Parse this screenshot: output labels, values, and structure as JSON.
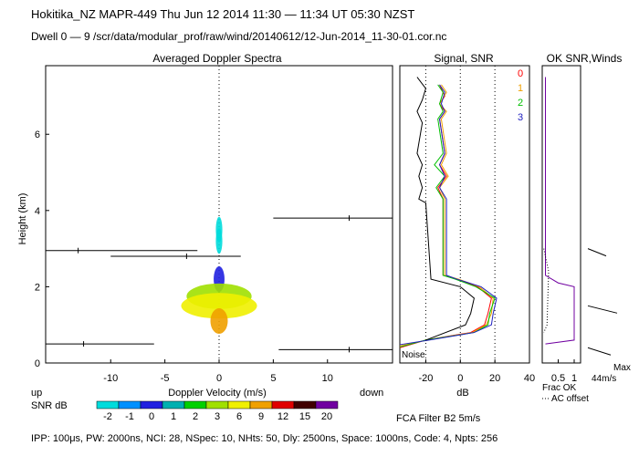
{
  "header": {
    "line1": "Hokitika_NZ   MAPR-449   Thu Jun 12 2014 11:30 — 11:34 UT 05:30 NZST",
    "line2": "Dwell   0 — 9    /scr/data/modular_prof/raw/wind/20140612/12-Jun-2014_11-30-01.cor.nc"
  },
  "footer": {
    "params": "IPP: 100μs,  PW: 2000ns,  NCI:  28,  NSpec: 10, NHts: 50,  Dly: 2500ns,  Space: 1000ns,  Code: 4,   Npts: 256",
    "fca": "FCA Filter B2   5m/s"
  },
  "colorbar": {
    "up": "up",
    "down": "down",
    "label": "SNR dB",
    "levels": [
      "-2",
      "-1",
      "0",
      "1",
      "2",
      "3",
      "6",
      "9",
      "12",
      "15",
      "20"
    ],
    "colors": [
      "#00dcdc",
      "#0090ff",
      "#2020e0",
      "#00b0b0",
      "#00d000",
      "#a0e000",
      "#f0f000",
      "#f0a000",
      "#e00000",
      "#400000",
      "#7000a0"
    ]
  },
  "chart_data": [
    {
      "type": "heatmap",
      "title": "Averaged Doppler Spectra",
      "xlabel": "Doppler Velocity (m/s)",
      "ylabel": "Height (km)",
      "xlim": [
        -16,
        16
      ],
      "ylim": [
        0,
        7.8
      ],
      "xticks": [
        "-10",
        "-5",
        "0",
        "5",
        "10"
      ],
      "xtick_values": [
        -10,
        -5,
        0,
        5,
        10
      ],
      "yticks": [
        "0",
        "2",
        "4",
        "6"
      ],
      "ytick_values": [
        0,
        2,
        4,
        6
      ],
      "echo_layers": [
        {
          "height": 3.5,
          "vmin": -0.3,
          "vmax": 0.3,
          "snr": -2
        },
        {
          "height": 3.2,
          "vmin": -0.3,
          "vmax": 0.3,
          "snr": -2
        },
        {
          "height": 2.2,
          "vmin": -0.5,
          "vmax": 0.5,
          "snr": 0
        },
        {
          "height": 1.75,
          "vmin": -3.0,
          "vmax": 3.0,
          "snr": 3
        },
        {
          "height": 1.5,
          "vmin": -3.5,
          "vmax": 3.5,
          "snr": 6
        },
        {
          "height": 1.1,
          "vmin": -0.8,
          "vmax": 0.8,
          "snr": 9
        }
      ],
      "moment_bars": [
        {
          "height": 2.95,
          "vmin": -16,
          "vmax": -2,
          "center": -13
        },
        {
          "height": 2.8,
          "vmin": -10,
          "vmax": 2,
          "center": -3
        },
        {
          "height": 0.5,
          "vmin": -16,
          "vmax": -6,
          "center": -12.5
        },
        {
          "height": 3.8,
          "vmin": 5,
          "vmax": 16,
          "center": 12
        },
        {
          "height": 0.35,
          "vmin": 5.5,
          "vmax": 16,
          "center": 12
        }
      ]
    },
    {
      "type": "line",
      "title": "Signal, SNR",
      "xlabel": "dB",
      "xlim": [
        -35,
        40
      ],
      "ylim": [
        0,
        7.8
      ],
      "xticks": [
        "-20",
        "0",
        "20",
        "40"
      ],
      "xtick_values": [
        -20,
        0,
        20,
        40
      ],
      "noise_label": "Noise",
      "series": [
        {
          "name": "0",
          "color": "#ff0000",
          "points": [
            [
              -12,
              7.3
            ],
            [
              -9,
              7.0
            ],
            [
              -12,
              6.8
            ],
            [
              -9,
              6.6
            ],
            [
              -12,
              6.4
            ],
            [
              -9,
              5.5
            ],
            [
              -12,
              5.2
            ],
            [
              -8,
              4.9
            ],
            [
              -13,
              4.6
            ],
            [
              -10,
              4.3
            ],
            [
              -10,
              2.3
            ],
            [
              -2,
              2.2
            ],
            [
              10,
              2.0
            ],
            [
              18,
              1.7
            ],
            [
              16,
              1.3
            ],
            [
              14,
              1.0
            ],
            [
              6,
              0.8
            ],
            [
              -20,
              0.6
            ],
            [
              -35,
              0.4
            ]
          ]
        },
        {
          "name": "1",
          "color": "#f0a000",
          "points": [
            [
              -11,
              7.3
            ],
            [
              -8,
              7.1
            ],
            [
              -12,
              6.8
            ],
            [
              -8,
              6.6
            ],
            [
              -11,
              6.4
            ],
            [
              -8,
              5.5
            ],
            [
              -11,
              5.2
            ],
            [
              -7,
              4.9
            ],
            [
              -12,
              4.6
            ],
            [
              -9,
              4.3
            ],
            [
              -9,
              2.3
            ],
            [
              -1,
              2.2
            ],
            [
              11,
              2.0
            ],
            [
              19,
              1.7
            ],
            [
              18,
              1.3
            ],
            [
              15,
              1.0
            ],
            [
              7,
              0.8
            ],
            [
              -19,
              0.6
            ],
            [
              -35,
              0.45
            ]
          ]
        },
        {
          "name": "2",
          "color": "#00c000",
          "points": [
            [
              -13,
              7.3
            ],
            [
              -10,
              7.1
            ],
            [
              -12,
              6.8
            ],
            [
              -10,
              6.6
            ],
            [
              -13,
              6.4
            ],
            [
              -10,
              5.5
            ],
            [
              -15,
              5.2
            ],
            [
              -9,
              4.9
            ],
            [
              -14,
              4.6
            ],
            [
              -10,
              4.3
            ],
            [
              -10,
              2.3
            ],
            [
              -3,
              2.2
            ],
            [
              9,
              2.0
            ],
            [
              20,
              1.7
            ],
            [
              17,
              1.3
            ],
            [
              16,
              1.0
            ],
            [
              8,
              0.8
            ],
            [
              -20,
              0.6
            ],
            [
              -35,
              0.42
            ]
          ]
        },
        {
          "name": "3",
          "color": "#2020c0",
          "points": [
            [
              -12,
              7.3
            ],
            [
              -9,
              7.1
            ],
            [
              -11,
              6.8
            ],
            [
              -9,
              6.6
            ],
            [
              -12,
              6.4
            ],
            [
              -9,
              5.5
            ],
            [
              -12,
              5.2
            ],
            [
              -9,
              4.9
            ],
            [
              -12,
              4.6
            ],
            [
              -8,
              4.3
            ],
            [
              -8,
              2.3
            ],
            [
              -2,
              2.2
            ],
            [
              12,
              2.0
            ],
            [
              21,
              1.7
            ],
            [
              19,
              1.3
            ],
            [
              18,
              1.0
            ],
            [
              8,
              0.8
            ],
            [
              -18,
              0.6
            ],
            [
              -35,
              0.48
            ]
          ]
        },
        {
          "name": "signal",
          "color": "#000000",
          "points": [
            [
              -25,
              7.5
            ],
            [
              -20,
              7.2
            ],
            [
              -22,
              6.9
            ],
            [
              -25,
              6.6
            ],
            [
              -22,
              6.3
            ],
            [
              -25,
              5.5
            ],
            [
              -22,
              5.2
            ],
            [
              -24,
              4.9
            ],
            [
              -22,
              4.6
            ],
            [
              -24,
              4.3
            ],
            [
              -20,
              4.2
            ],
            [
              -17,
              2.2
            ],
            [
              0,
              2.0
            ],
            [
              8,
              1.7
            ],
            [
              6,
              1.3
            ],
            [
              3,
              1.0
            ],
            [
              -20,
              0.6
            ]
          ]
        }
      ]
    },
    {
      "type": "line",
      "title": "OK SNR,Winds",
      "xlabel": "Frac OK",
      "xlim": [
        0,
        1.2
      ],
      "ylim": [
        0,
        7.8
      ],
      "xticks": [
        "0.5",
        "1"
      ],
      "xtick_values": [
        0.5,
        1
      ],
      "legend_note": "AC offset",
      "max_wind_label": "Max",
      "max_wind_value": "44m/s",
      "series": [
        {
          "name": "frac-ok",
          "color": "#7000a0",
          "points": [
            [
              0.1,
              7.5
            ],
            [
              0.1,
              2.3
            ],
            [
              0.5,
              2.1
            ],
            [
              1.0,
              2.0
            ],
            [
              1.0,
              0.6
            ],
            [
              0.1,
              0.5
            ]
          ]
        },
        {
          "name": "ac-offset",
          "color": "#000000",
          "points": [
            [
              0.05,
              3.0
            ],
            [
              0.1,
              2.8
            ],
            [
              0.2,
              2.4
            ],
            [
              0.15,
              1.0
            ],
            [
              0.05,
              0.8
            ]
          ]
        }
      ],
      "wind_barbs": [
        {
          "height": 3.0,
          "speed": 20
        },
        {
          "height": 1.5,
          "speed": 44
        },
        {
          "height": 0.4,
          "speed": 30
        }
      ]
    }
  ]
}
